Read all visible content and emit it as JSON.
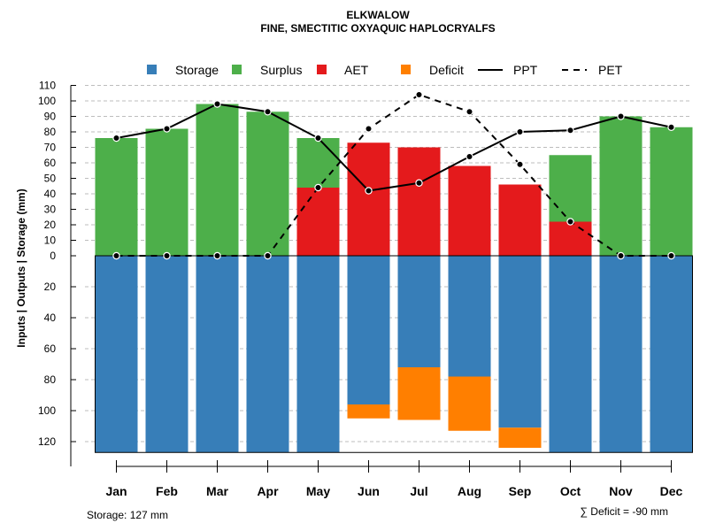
{
  "chart_data": {
    "type": "bar",
    "title": "ELKWALOW",
    "subtitle": "FINE, SMECTITIC OXYAQUIC HAPLOCRYALFS",
    "ylabel": "Inputs | Outputs | Storage    (mm)",
    "categories": [
      "Jan",
      "Feb",
      "Mar",
      "Apr",
      "May",
      "Jun",
      "Jul",
      "Aug",
      "Sep",
      "Oct",
      "Nov",
      "Dec"
    ],
    "y_upper_ticks": [
      0,
      10,
      20,
      30,
      40,
      50,
      60,
      70,
      80,
      90,
      100,
      110
    ],
    "y_lower_ticks": [
      0,
      20,
      40,
      60,
      80,
      100,
      120
    ],
    "ylim_upper": [
      0,
      110
    ],
    "ylim_lower": [
      0,
      127
    ],
    "grid": "horizontal dashed",
    "legend_position": "top",
    "legend": [
      "Storage",
      "Surplus",
      "AET",
      "Deficit",
      "PPT",
      "PET"
    ],
    "colors": {
      "storage": "#377EB8",
      "surplus": "#4DAF4A",
      "aet": "#E41A1C",
      "deficit": "#FF7F00",
      "line": "#000000"
    },
    "series": [
      {
        "name": "Storage",
        "values": [
          127,
          127,
          127,
          127,
          127,
          96,
          72,
          78,
          111,
          127,
          127,
          127
        ]
      },
      {
        "name": "Surplus",
        "values": [
          76,
          82,
          98,
          93,
          32,
          0,
          0,
          0,
          0,
          43,
          90,
          83
        ]
      },
      {
        "name": "AET",
        "values": [
          0,
          0,
          0,
          0,
          44,
          73,
          70,
          58,
          46,
          22,
          0,
          0
        ]
      },
      {
        "name": "Deficit",
        "values": [
          0,
          0,
          0,
          0,
          0,
          9,
          34,
          35,
          13,
          0,
          0,
          0
        ]
      },
      {
        "name": "PPT",
        "values": [
          76,
          82,
          98,
          93,
          76,
          42,
          47,
          64,
          80,
          81,
          90,
          83
        ]
      },
      {
        "name": "PET",
        "values": [
          0,
          0,
          0,
          0,
          44,
          82,
          104,
          93,
          59,
          22,
          0,
          0
        ]
      }
    ],
    "annotations": {
      "storage_note": "Storage: 127 mm",
      "deficit_note": "∑ Deficit = -90 mm"
    }
  }
}
